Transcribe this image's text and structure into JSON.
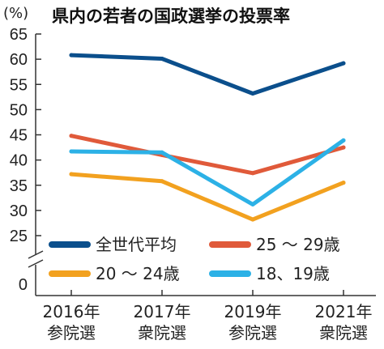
{
  "chart_data": {
    "type": "line",
    "title": "県内の若者の国政選挙の投票率",
    "unit_label": "(%)",
    "categories": [
      [
        "2016年",
        "参院選"
      ],
      [
        "2017年",
        "衆院選"
      ],
      [
        "2019年",
        "参院選"
      ],
      [
        "2021年",
        "衆院選"
      ]
    ],
    "y_ticks": [
      65,
      60,
      55,
      50,
      45,
      40,
      35,
      30,
      25
    ],
    "y_zero_label": "0",
    "ylim": [
      25,
      65
    ],
    "axis_break": true,
    "grid": false,
    "legend_position": "bottom",
    "series": [
      {
        "name": "全世代平均",
        "color": "#0b4f8c",
        "values": [
          60.8,
          60.1,
          53.2,
          59.2
        ]
      },
      {
        "name": "25 ～ 29歳",
        "color": "#e05a3a",
        "values": [
          44.8,
          41.0,
          37.4,
          42.5
        ]
      },
      {
        "name": "20 ～ 24歳",
        "color": "#f2a11f",
        "values": [
          37.2,
          35.8,
          28.2,
          35.5
        ]
      },
      {
        "name": "18、19歳",
        "color": "#2cb1e6",
        "values": [
          41.7,
          41.5,
          31.2,
          43.9
        ]
      }
    ]
  }
}
